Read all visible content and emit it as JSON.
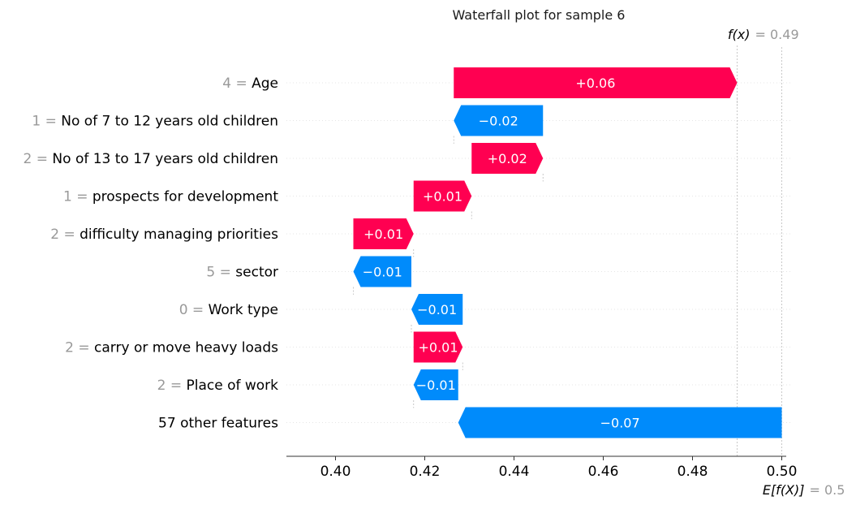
{
  "chart_data": {
    "type": "waterfall",
    "title": "Waterfall plot for sample 6",
    "base_value": 0.5,
    "base_label": "E[f(X)]",
    "base_value_label": "= 0.5",
    "output_value": 0.49,
    "output_label": "f(x)",
    "output_value_label": "= 0.49",
    "xlim": [
      0.389,
      0.501
    ],
    "x_ticks": [
      0.4,
      0.42,
      0.44,
      0.46,
      0.48,
      0.5
    ],
    "x_tick_labels": [
      "0.40",
      "0.42",
      "0.44",
      "0.46",
      "0.48",
      "0.50"
    ],
    "colors": {
      "positive": "#ff0051",
      "negative": "#008bfb",
      "muted": "#999999"
    },
    "features": [
      {
        "value": "4",
        "name": "Age",
        "start": 0.4265,
        "end": 0.49,
        "label": "+0.06"
      },
      {
        "value": "1",
        "name": "No of 7 to 12 years old children",
        "start": 0.4465,
        "end": 0.4265,
        "label": "−0.02"
      },
      {
        "value": "2",
        "name": "No of 13 to 17 years old children",
        "start": 0.4305,
        "end": 0.4465,
        "label": "+0.02"
      },
      {
        "value": "1",
        "name": "prospects for development",
        "start": 0.4175,
        "end": 0.4305,
        "label": "+0.01"
      },
      {
        "value": "2",
        "name": "difficulty managing priorities",
        "start": 0.404,
        "end": 0.4175,
        "label": "+0.01"
      },
      {
        "value": "5",
        "name": "sector",
        "start": 0.417,
        "end": 0.404,
        "label": "−0.01"
      },
      {
        "value": "0",
        "name": "Work type",
        "start": 0.4285,
        "end": 0.417,
        "label": "−0.01"
      },
      {
        "value": "2",
        "name": "carry or move heavy loads",
        "start": 0.4175,
        "end": 0.4285,
        "label": "+0.01"
      },
      {
        "value": "2",
        "name": "Place of work",
        "start": 0.4275,
        "end": 0.4175,
        "label": "−0.01"
      },
      {
        "value": "",
        "name": "57 other features",
        "start": 0.5,
        "end": 0.4275,
        "label": "−0.07"
      }
    ]
  }
}
